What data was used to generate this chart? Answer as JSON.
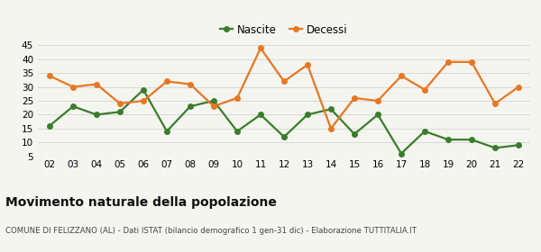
{
  "years": [
    "02",
    "03",
    "04",
    "05",
    "06",
    "07",
    "08",
    "09",
    "10",
    "11",
    "12",
    "13",
    "14",
    "15",
    "16",
    "17",
    "18",
    "19",
    "20",
    "21",
    "22"
  ],
  "nascite": [
    16,
    23,
    20,
    21,
    29,
    14,
    23,
    25,
    14,
    20,
    12,
    20,
    22,
    13,
    20,
    6,
    14,
    11,
    11,
    8,
    9
  ],
  "decessi": [
    34,
    30,
    31,
    24,
    25,
    32,
    31,
    23,
    26,
    44,
    32,
    38,
    15,
    26,
    25,
    34,
    29,
    39,
    39,
    24,
    30
  ],
  "nascite_color": "#3a7d2c",
  "decessi_color": "#e87722",
  "background_color": "#f5f5f0",
  "grid_color": "#d8d8d8",
  "ylim": [
    5,
    45
  ],
  "yticks": [
    5,
    10,
    15,
    20,
    25,
    30,
    35,
    40,
    45
  ],
  "title": "Movimento naturale della popolazione",
  "subtitle": "COMUNE DI FELIZZANO (AL) - Dati ISTAT (bilancio demografico 1 gen-31 dic) - Elaborazione TUTTITALIA.IT",
  "legend_nascite": "Nascite",
  "legend_decessi": "Decessi",
  "marker_size": 4,
  "line_width": 1.6
}
